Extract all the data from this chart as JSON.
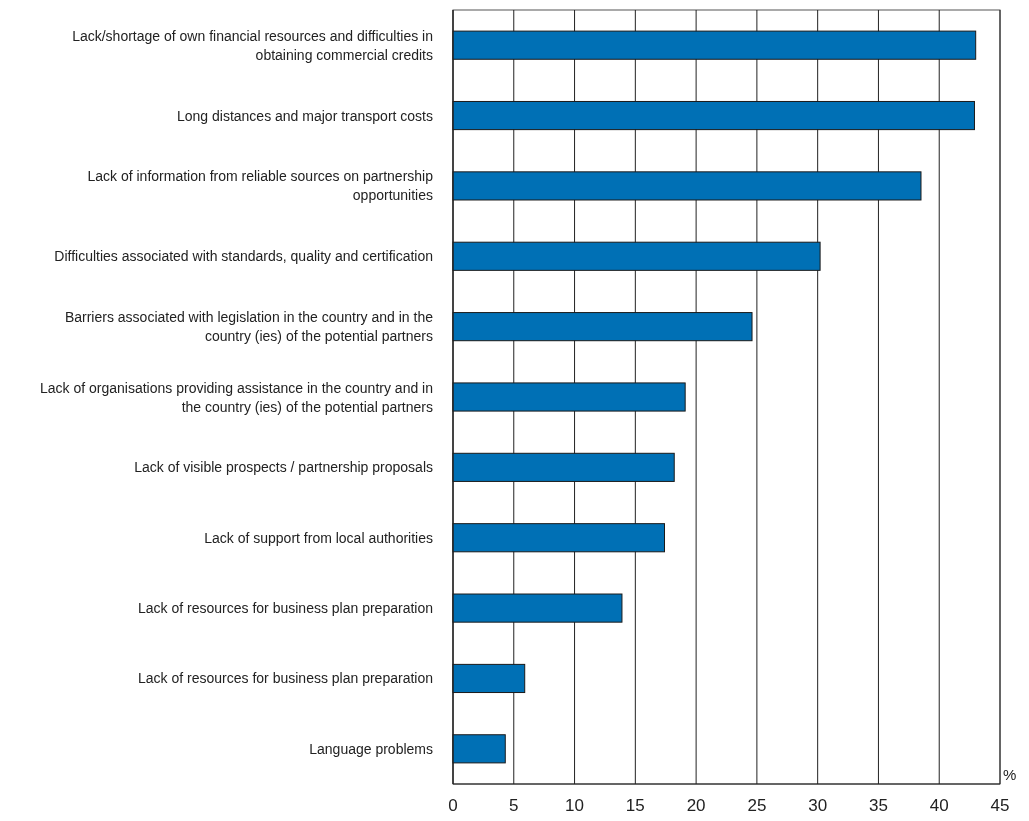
{
  "chart_data": {
    "type": "bar",
    "orientation": "horizontal",
    "xlabel": "%",
    "categories": [
      "Lack/shortage of own financial resources and difficulties in obtaining commercial credits",
      "Long distances and major transport costs",
      "Lack of information from reliable sources on partnership opportunities",
      "Difficulties associated with standards, quality and certification",
      "Barriers associated with legislation in the country and in the country (ies) of the potential partners",
      "Lack of organisations providing assistance in the country and in the country (ies) of the potential partners",
      "Lack of visible prospects / partnership proposals",
      "Lack of support from local authorities",
      "Lack of resources for business plan preparation",
      "Lack of resources for business plan preparation",
      "Language problems"
    ],
    "values": [
      43.0,
      42.9,
      38.5,
      30.2,
      24.6,
      19.1,
      18.2,
      17.4,
      13.9,
      5.9,
      4.3
    ],
    "color": "#0070b5",
    "xlim": [
      0,
      45
    ],
    "xticks": [
      0,
      5,
      10,
      15,
      20,
      25,
      30,
      35,
      40,
      45
    ],
    "grid": "x"
  }
}
